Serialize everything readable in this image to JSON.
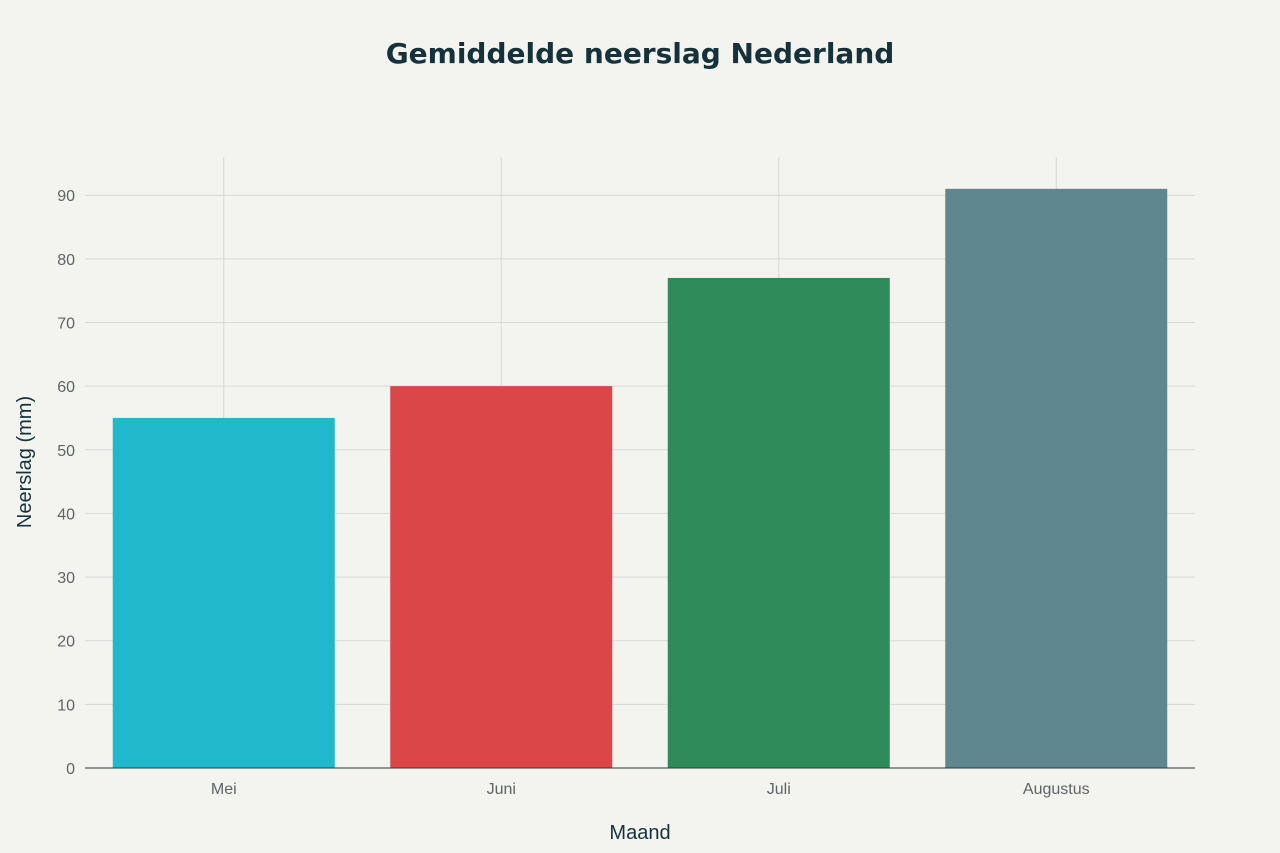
{
  "chart_data": {
    "type": "bar",
    "title": "Gemiddelde neerslag Nederland",
    "xlabel": "Maand",
    "ylabel": "Neerslag (mm)",
    "categories": [
      "Mei",
      "Juni",
      "Juli",
      "Augustus"
    ],
    "values": [
      55,
      60,
      77,
      91
    ],
    "colors": [
      "#21b8cc",
      "#db4648",
      "#2e8a59",
      "#5e8790"
    ],
    "ylim": [
      0,
      96
    ],
    "yticks": [
      0,
      10,
      20,
      30,
      40,
      50,
      60,
      70,
      80,
      90
    ],
    "grid": true,
    "legend": "none"
  }
}
